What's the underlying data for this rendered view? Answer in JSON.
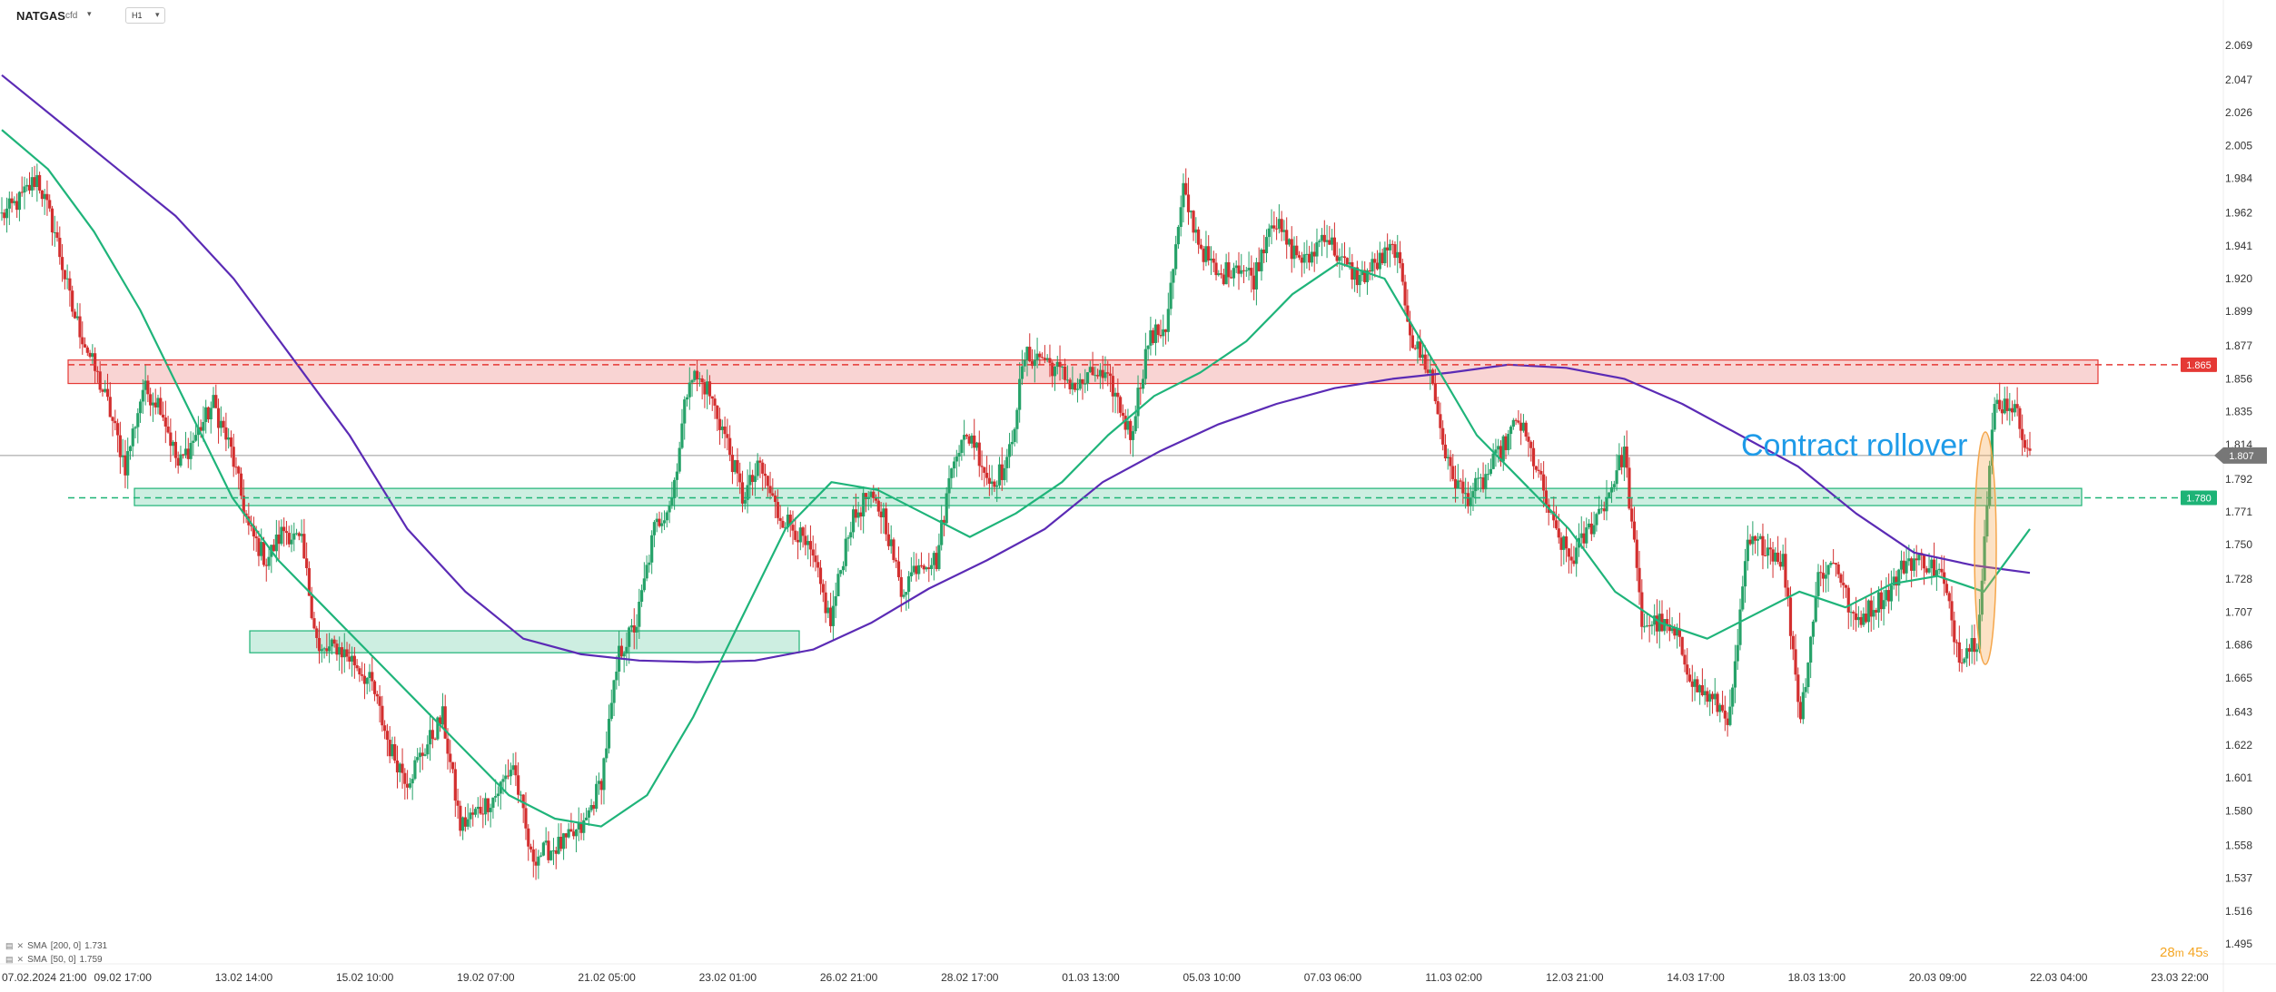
{
  "header": {
    "symbol": "NATGAS",
    "symbol_type": "cfd",
    "timeframe": "H1"
  },
  "annotation": "Contract rollover",
  "countdown": {
    "minutes": "28",
    "min_unit": "m",
    "seconds": "45",
    "sec_unit": "s"
  },
  "legend": [
    {
      "name": "SMA",
      "params": "[200, 0]",
      "value": "1.731"
    },
    {
      "name": "SMA",
      "params": "[50, 0]",
      "value": "1.759"
    }
  ],
  "colors": {
    "up": "#26a269",
    "down": "#d32f2f",
    "sma200": "#5b2bb5",
    "sma50": "#1fb47a",
    "resistance": "#e53935",
    "support": "#1db376",
    "rollover": "#f5a64b",
    "annotation": "#1e9be8",
    "current": "#777777"
  },
  "chart_data": {
    "type": "candlestick",
    "title": "",
    "ylim": [
      1.495,
      2.08
    ],
    "y_ticks": [
      "2.069",
      "2.047",
      "2.026",
      "2.005",
      "1.984",
      "1.962",
      "1.941",
      "1.920",
      "1.899",
      "1.877",
      "1.856",
      "1.835",
      "1.814",
      "1.792",
      "1.771",
      "1.750",
      "1.728",
      "1.707",
      "1.686",
      "1.665",
      "1.643",
      "1.622",
      "1.601",
      "1.580",
      "1.558",
      "1.537",
      "1.516",
      "1.495"
    ],
    "x_ticks": [
      "07.02.2024  21:00",
      "09.02  17:00",
      "13.02  14:00",
      "15.02  10:00",
      "19.02  07:00",
      "21.02  05:00",
      "23.02  01:00",
      "26.02  21:00",
      "28.02  17:00",
      "01.03  13:00",
      "05.03  10:00",
      "07.03  06:00",
      "11.03  02:00",
      "12.03  21:00",
      "14.03  17:00",
      "18.03  13:00",
      "20.03  09:00",
      "22.03  04:00",
      "23.03  22:00"
    ],
    "levels": [
      {
        "name": "resistance",
        "value": 1.865,
        "label": "1.865",
        "zone": [
          1.853,
          1.868
        ]
      },
      {
        "name": "support",
        "value": 1.78,
        "label": "1.780",
        "zone": [
          1.775,
          1.786
        ]
      }
    ],
    "extra_zone": {
      "name": "support-zone-lower",
      "zone": [
        1.681,
        1.695
      ]
    },
    "current_price": {
      "value": 1.807,
      "label": "1.807"
    },
    "close_path": [
      1.96,
      1.97,
      1.985,
      1.95,
      1.9,
      1.87,
      1.84,
      1.8,
      1.85,
      1.84,
      1.8,
      1.82,
      1.84,
      1.81,
      1.76,
      1.74,
      1.76,
      1.75,
      1.68,
      1.685,
      1.675,
      1.66,
      1.62,
      1.6,
      1.62,
      1.64,
      1.57,
      1.58,
      1.59,
      1.61,
      1.55,
      1.555,
      1.56,
      1.57,
      1.6,
      1.68,
      1.7,
      1.76,
      1.78,
      1.86,
      1.85,
      1.82,
      1.78,
      1.8,
      1.77,
      1.76,
      1.74,
      1.7,
      1.76,
      1.78,
      1.77,
      1.72,
      1.74,
      1.74,
      1.81,
      1.82,
      1.79,
      1.8,
      1.87,
      1.87,
      1.86,
      1.85,
      1.86,
      1.85,
      1.82,
      1.88,
      1.89,
      1.975,
      1.94,
      1.92,
      1.93,
      1.92,
      1.96,
      1.94,
      1.93,
      1.95,
      1.93,
      1.92,
      1.93,
      1.94,
      1.88,
      1.86,
      1.8,
      1.78,
      1.79,
      1.81,
      1.83,
      1.8,
      1.76,
      1.74,
      1.76,
      1.78,
      1.81,
      1.7,
      1.7,
      1.69,
      1.66,
      1.65,
      1.64,
      1.75,
      1.75,
      1.74,
      1.64,
      1.73,
      1.74,
      1.7,
      1.71,
      1.72,
      1.74,
      1.74,
      1.73,
      1.68,
      1.69,
      1.84,
      1.84,
      1.81
    ],
    "sma200": [
      2.05,
      2.02,
      1.99,
      1.96,
      1.92,
      1.87,
      1.82,
      1.76,
      1.72,
      1.69,
      1.68,
      1.676,
      1.675,
      1.676,
      1.683,
      1.7,
      1.722,
      1.74,
      1.76,
      1.79,
      1.81,
      1.827,
      1.84,
      1.85,
      1.856,
      1.86,
      1.865,
      1.863,
      1.856,
      1.84,
      1.82,
      1.8,
      1.77,
      1.745,
      1.737,
      1.732
    ],
    "sma50": [
      2.015,
      1.99,
      1.95,
      1.9,
      1.84,
      1.78,
      1.74,
      1.71,
      1.68,
      1.65,
      1.62,
      1.59,
      1.575,
      1.57,
      1.59,
      1.64,
      1.7,
      1.76,
      1.79,
      1.785,
      1.77,
      1.755,
      1.77,
      1.79,
      1.82,
      1.845,
      1.86,
      1.88,
      1.91,
      1.93,
      1.92,
      1.87,
      1.82,
      1.79,
      1.76,
      1.72,
      1.7,
      1.69,
      1.705,
      1.72,
      1.71,
      1.725,
      1.73,
      1.72,
      1.76
    ]
  }
}
